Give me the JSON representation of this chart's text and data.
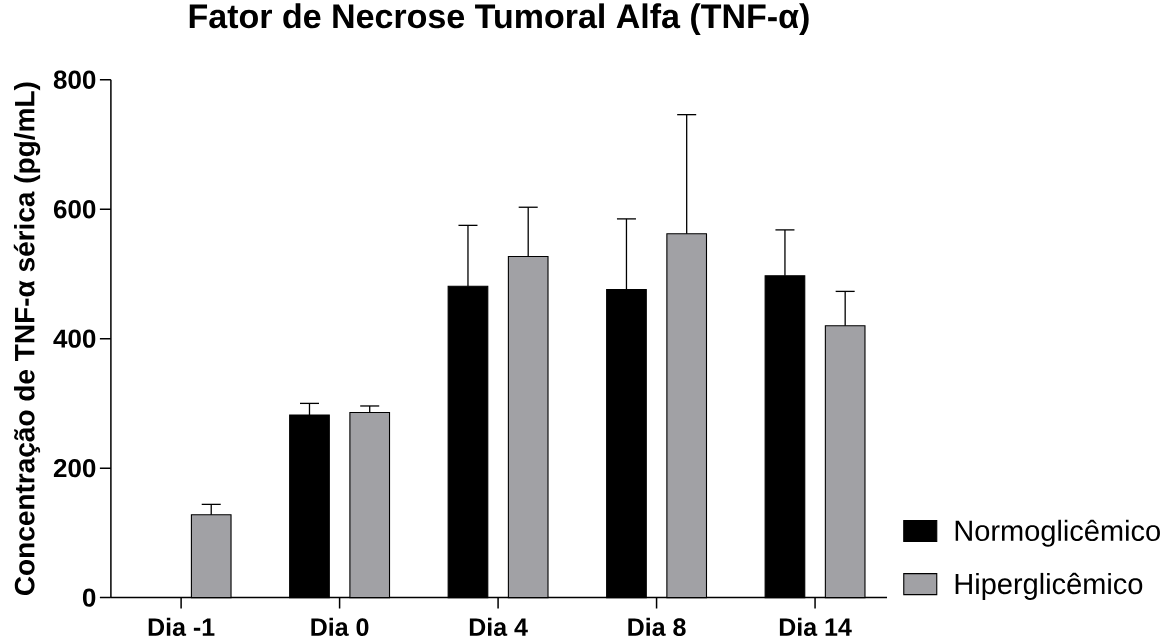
{
  "chart_data": {
    "type": "bar",
    "title": "Fator de Necrose Tumoral Alfa (TNF-α)",
    "ylabel": "Concentração de TNF-α sérica (pg/mL)",
    "categories": [
      "Dia -1",
      "Dia 0",
      "Dia 4",
      "Dia 8",
      "Dia 14"
    ],
    "series": [
      {
        "name": "Normoglicêmico",
        "color": "#000000",
        "values": [
          null,
          282,
          481,
          476,
          497
        ],
        "errors": [
          null,
          [
            282,
            300
          ],
          [
            481,
            575
          ],
          [
            476,
            585
          ],
          [
            497,
            568
          ]
        ]
      },
      {
        "name": "Hiperglicêmico",
        "color": "#a1a1a5",
        "values": [
          128,
          286,
          527,
          562,
          420
        ],
        "errors": [
          [
            128,
            144
          ],
          [
            286,
            296
          ],
          [
            527,
            603
          ],
          [
            562,
            746
          ],
          [
            420,
            473
          ]
        ]
      }
    ],
    "ylim": [
      0,
      800
    ],
    "yticks": [
      0,
      200,
      400,
      600,
      800
    ],
    "legend": "bottom right"
  }
}
